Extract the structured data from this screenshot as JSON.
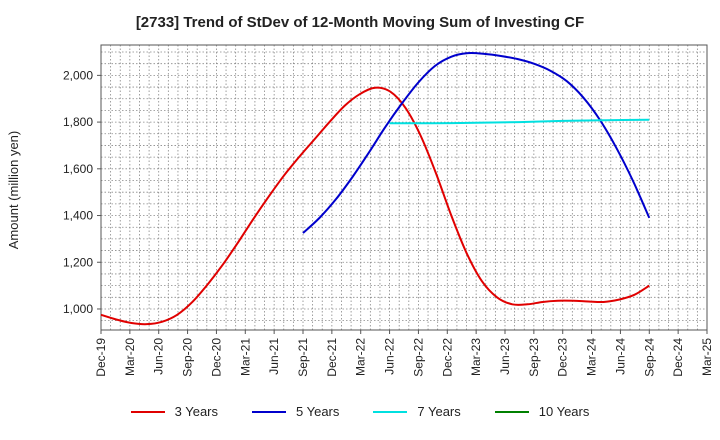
{
  "chart_data": {
    "type": "line",
    "title": "[2733]  Trend of StDev of 12-Month Moving Sum of Investing CF",
    "xlabel": "",
    "ylabel": "Amount (million yen)",
    "x_tick_labels": [
      "Dec-19",
      "Mar-20",
      "Jun-20",
      "Sep-20",
      "Dec-20",
      "Mar-21",
      "Jun-21",
      "Sep-21",
      "Dec-21",
      "Mar-22",
      "Jun-22",
      "Sep-22",
      "Dec-22",
      "Mar-23",
      "Jun-23",
      "Sep-23",
      "Dec-23",
      "Mar-24",
      "Jun-24",
      "Sep-24",
      "Dec-24",
      "Mar-25"
    ],
    "y_ticks": [
      1000,
      1200,
      1400,
      1600,
      1800,
      2000
    ],
    "y_tick_labels": [
      "1,000",
      "1,200",
      "1,400",
      "1,600",
      "1,800",
      "2,000"
    ],
    "ylim": [
      910,
      2130
    ],
    "grid": true,
    "legend_position": "bottom",
    "series": [
      {
        "name": "3 Years",
        "color": "#e00000",
        "start_index": 0,
        "values": [
          975,
          955,
          940,
          935,
          945,
          975,
          1030,
          1105,
          1190,
          1285,
          1385,
          1480,
          1570,
          1650,
          1725,
          1800,
          1870,
          1920,
          1947,
          1930,
          1860,
          1740,
          1580,
          1400,
          1240,
          1120,
          1050,
          1020,
          1020,
          1030,
          1035,
          1035,
          1032,
          1030,
          1040,
          1060,
          1100
        ]
      },
      {
        "name": "5 Years",
        "color": "#0000cc",
        "start_index": 21,
        "values": [
          1325,
          1390,
          1470,
          1565,
          1670,
          1780,
          1880,
          1970,
          2040,
          2080,
          2095,
          2092,
          2083,
          2070,
          2050,
          2020,
          1975,
          1905,
          1810,
          1690,
          1550,
          1390
        ]
      },
      {
        "name": "7 Years",
        "color": "#00e0e0",
        "start_index": 30,
        "values": [
          1795,
          1795,
          1797,
          1800,
          1805,
          1808,
          1810
        ]
      },
      {
        "name": "10 Years",
        "color": "#008000",
        "start_index": 0,
        "values": []
      }
    ]
  }
}
